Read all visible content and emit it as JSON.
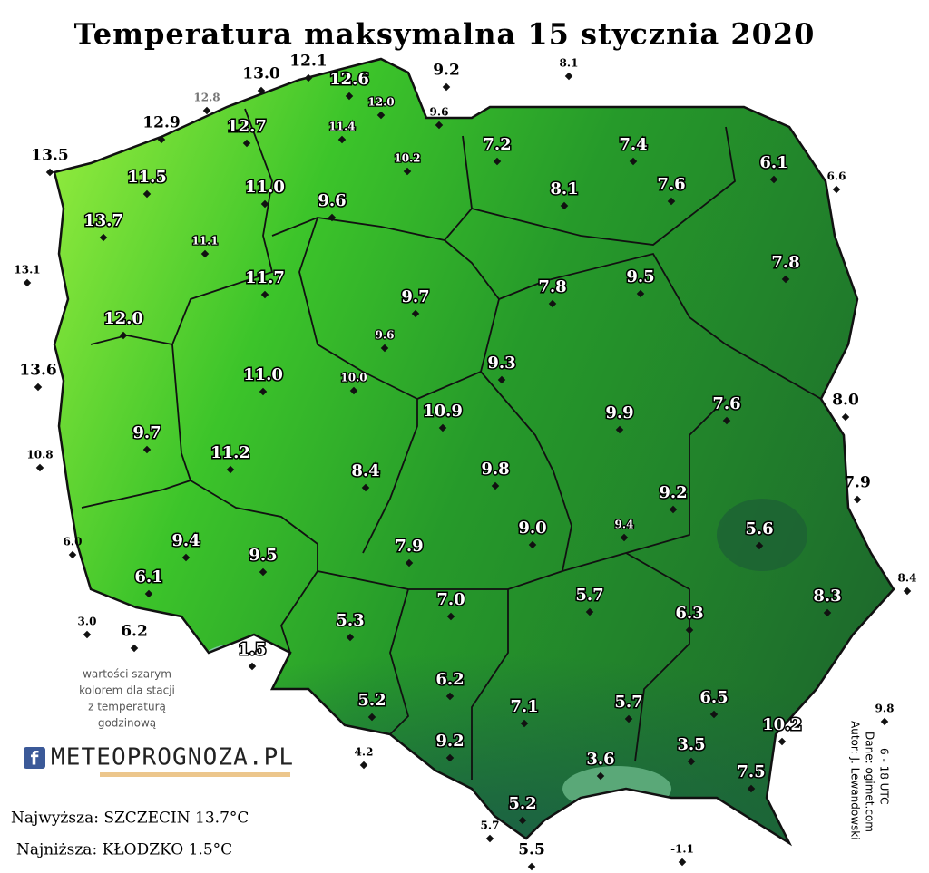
{
  "title": "Temperatura maksymalna 15 stycznia 2020",
  "stations": [
    "12.1",
    "13.0",
    "12.6",
    "9.2",
    "8.1",
    "12.8",
    "12.0",
    "12.7",
    "11.4",
    "9.6",
    "12.9",
    "13.5",
    "7.2",
    "7.4",
    "10.2",
    "6.1",
    "6.6",
    "11.5",
    "11.0",
    "8.1",
    "7.6",
    "9.6",
    "13.7",
    "11.1",
    "7.8",
    "13.1",
    "11.7",
    "9.5",
    "7.8",
    "9.7",
    "12.0",
    "9.6",
    "13.6",
    "9.3",
    "11.0",
    "10.0",
    "8.0",
    "7.6",
    "10.9",
    "9.9",
    "9.7",
    "10.8",
    "11.2",
    "9.8",
    "8.4",
    "7.9",
    "9.2",
    "6.0",
    "9.4",
    "9.0",
    "9.4",
    "5.6",
    "9.5",
    "7.9",
    "6.1",
    "8.4",
    "7.0",
    "5.7",
    "8.3",
    "3.0",
    "6.3",
    "5.3",
    "6.2",
    "1.5",
    "6.2",
    "5.2",
    "6.5",
    "7.1",
    "5.7",
    "9.8",
    "10.2",
    "9.2",
    "3.6",
    "3.5",
    "4.2",
    "7.5",
    "5.2",
    "5.7",
    "-1.1",
    "5.5"
  ],
  "note": [
    "wartości szarym",
    "kolorem dla stacji",
    "z temperaturą",
    "godzinową"
  ],
  "logo": {
    "icon": "f",
    "text": "METEOPROGNOZA.PL"
  },
  "highest": "Najwyższa: SZCZECIN 13.7°C",
  "lowest": "Najniższa: KŁODZKO 1.5°C",
  "credits": [
    "Autor: J. Lewandowski",
    "Dane: ogimet.com",
    "6 - 18 UTC"
  ]
}
